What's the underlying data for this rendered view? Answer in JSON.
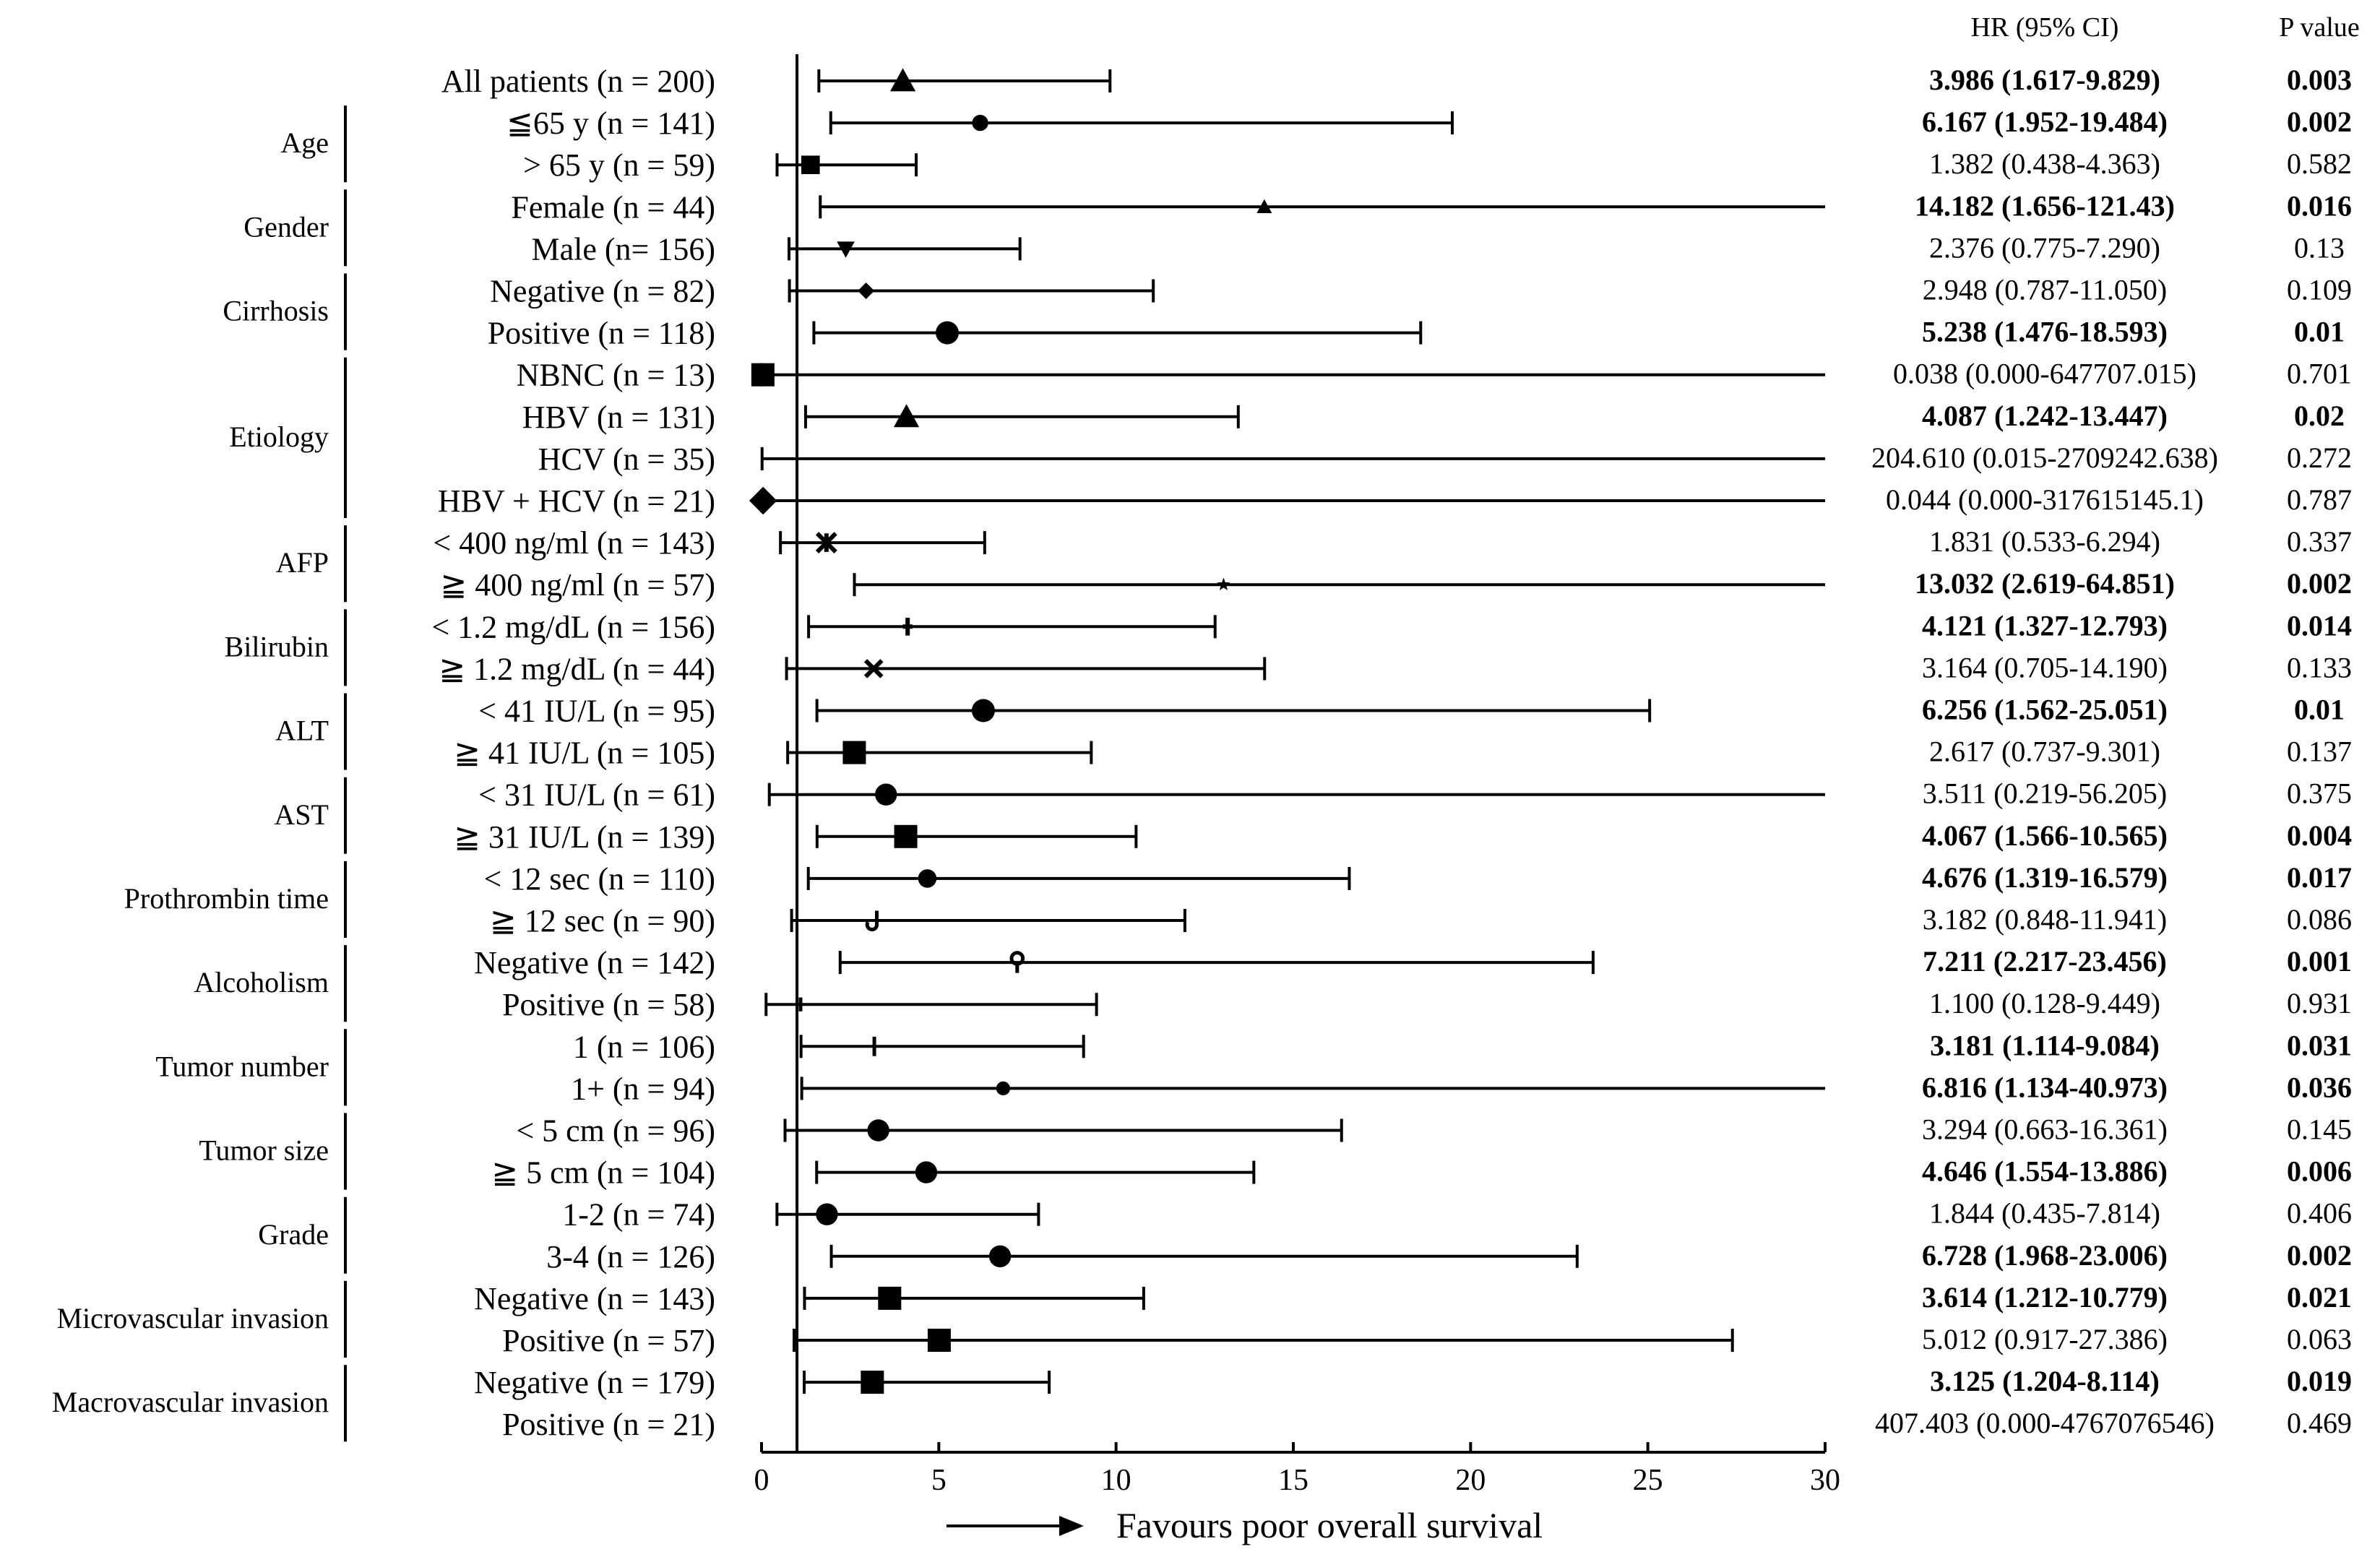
{
  "chart_data": {
    "type": "forest",
    "x_ticks": [
      0,
      5,
      10,
      15,
      20,
      25,
      30
    ],
    "xlim": [
      0,
      30
    ],
    "reference_line": 1,
    "xlabel": "Favours poor overall survival",
    "column_headers": {
      "hr": "HR (95% CI)",
      "p": "P value"
    },
    "groups": [
      {
        "label": "Age",
        "rows": [
          1,
          2
        ]
      },
      {
        "label": "Gender",
        "rows": [
          3,
          4
        ]
      },
      {
        "label": "Cirrhosis",
        "rows": [
          5,
          6
        ]
      },
      {
        "label": "Etiology",
        "rows": [
          7,
          10
        ]
      },
      {
        "label": "AFP",
        "rows": [
          11,
          12
        ]
      },
      {
        "label": "Bilirubin",
        "rows": [
          13,
          14
        ]
      },
      {
        "label": "ALT",
        "rows": [
          15,
          16
        ]
      },
      {
        "label": "AST",
        "rows": [
          17,
          18
        ]
      },
      {
        "label": "Prothrombin time",
        "rows": [
          19,
          20
        ]
      },
      {
        "label": "Alcoholism",
        "rows": [
          21,
          22
        ]
      },
      {
        "label": "Tumor number",
        "rows": [
          23,
          24
        ]
      },
      {
        "label": "Tumor size",
        "rows": [
          25,
          26
        ]
      },
      {
        "label": "Grade",
        "rows": [
          27,
          28
        ]
      },
      {
        "label": "Microvascular invasion",
        "rows": [
          29,
          30
        ]
      },
      {
        "label": "Macrovascular invasion",
        "rows": [
          31,
          32
        ]
      }
    ],
    "rows": [
      {
        "label": "All patients (n = 200)",
        "hr": 3.986,
        "lo": 1.617,
        "hi": 9.829,
        "hr_text": "3.986 (1.617-9.829)",
        "p": "0.003",
        "sig": true,
        "marker": "triangle",
        "msize": 1.0
      },
      {
        "label": "≦65 y (n = 141)",
        "hr": 6.167,
        "lo": 1.952,
        "hi": 19.484,
        "hr_text": "6.167 (1.952-19.484)",
        "p": "0.002",
        "sig": true,
        "marker": "circle",
        "msize": 0.7
      },
      {
        "label": "> 65 y (n = 59)",
        "hr": 1.382,
        "lo": 0.438,
        "hi": 4.363,
        "hr_text": "1.382 (0.438-4.363)",
        "p": "0.582",
        "sig": false,
        "marker": "square",
        "msize": 0.8
      },
      {
        "label": "Female (n = 44)",
        "hr": 14.182,
        "lo": 1.656,
        "hi": 121.43,
        "hr_text": "14.182 (1.656-121.43)",
        "p": "0.016",
        "sig": true,
        "marker": "triangle",
        "msize": 0.6
      },
      {
        "label": "Male (n= 156)",
        "hr": 2.376,
        "lo": 0.775,
        "hi": 7.29,
        "hr_text": "2.376 (0.775-7.290)",
        "p": "0.13",
        "sig": false,
        "marker": "triangle-down",
        "msize": 0.7
      },
      {
        "label": "Negative (n = 82)",
        "hr": 2.948,
        "lo": 0.787,
        "hi": 11.05,
        "hr_text": "2.948 (0.787-11.050)",
        "p": "0.109",
        "sig": false,
        "marker": "diamond",
        "msize": 0.6
      },
      {
        "label": "Positive (n = 118)",
        "hr": 5.238,
        "lo": 1.476,
        "hi": 18.593,
        "hr_text": "5.238 (1.476-18.593)",
        "p": "0.01",
        "sig": true,
        "marker": "circle",
        "msize": 1.0
      },
      {
        "label": "NBNC (n = 13)",
        "hr": 0.038,
        "lo": 0.0,
        "hi": 647707.015,
        "hr_text": "0.038 (0.000-647707.015)",
        "p": "0.701",
        "sig": false,
        "marker": "square",
        "msize": 1.0
      },
      {
        "label": "HBV (n = 131)",
        "hr": 4.087,
        "lo": 1.242,
        "hi": 13.447,
        "hr_text": "4.087 (1.242-13.447)",
        "p": "0.02",
        "sig": true,
        "marker": "triangle",
        "msize": 1.0
      },
      {
        "label": "HCV (n = 35)",
        "hr": 204.61,
        "lo": 0.015,
        "hi": 2709242.638,
        "hr_text": "204.610 (0.015-2709242.638)",
        "p": "0.272",
        "sig": false,
        "marker": "none",
        "msize": 0
      },
      {
        "label": "HBV + HCV (n = 21)",
        "hr": 0.044,
        "lo": 0.0,
        "hi": 317615145.1,
        "hr_text": "0.044 (0.000-317615145.1)",
        "p": "0.787",
        "sig": false,
        "marker": "diamond",
        "msize": 1.0
      },
      {
        "label": "< 400 ng/ml (n = 143)",
        "hr": 1.831,
        "lo": 0.533,
        "hi": 6.294,
        "hr_text": "1.831 (0.533-6.294)",
        "p": "0.337",
        "sig": false,
        "marker": "cross",
        "msize": 0.8
      },
      {
        "label": "≧ 400 ng/ml (n = 57)",
        "hr": 13.032,
        "lo": 2.619,
        "hi": 64.851,
        "hr_text": "13.032 (2.619-64.851)",
        "p": "0.002",
        "sig": true,
        "marker": "star",
        "msize": 0.5
      },
      {
        "label": "< 1.2 mg/dL (n = 156)",
        "hr": 4.121,
        "lo": 1.327,
        "hi": 12.793,
        "hr_text": "4.121 (1.327-12.793)",
        "p": "0.014",
        "sig": true,
        "marker": "plus",
        "msize": 0.7
      },
      {
        "label": "≧ 1.2 mg/dL (n = 44)",
        "hr": 3.164,
        "lo": 0.705,
        "hi": 14.19,
        "hr_text": "3.164 (0.705-14.190)",
        "p": "0.133",
        "sig": false,
        "marker": "x",
        "msize": 0.7
      },
      {
        "label": "< 41 IU/L (n = 95)",
        "hr": 6.256,
        "lo": 1.562,
        "hi": 25.051,
        "hr_text": "6.256 (1.562-25.051)",
        "p": "0.01",
        "sig": true,
        "marker": "circle",
        "msize": 1.0
      },
      {
        "label": "≧ 41 IU/L (n = 105)",
        "hr": 2.617,
        "lo": 0.737,
        "hi": 9.301,
        "hr_text": "2.617 (0.737-9.301)",
        "p": "0.137",
        "sig": false,
        "marker": "square",
        "msize": 1.0
      },
      {
        "label": "< 31 IU/L (n = 61)",
        "hr": 3.511,
        "lo": 0.219,
        "hi": 56.205,
        "hr_text": "3.511 (0.219-56.205)",
        "p": "0.375",
        "sig": false,
        "marker": "circle",
        "msize": 0.95
      },
      {
        "label": "≧ 31 IU/L (n = 139)",
        "hr": 4.067,
        "lo": 1.566,
        "hi": 10.565,
        "hr_text": "4.067 (1.566-10.565)",
        "p": "0.004",
        "sig": true,
        "marker": "square",
        "msize": 1.0
      },
      {
        "label": "< 12 sec (n = 110)",
        "hr": 4.676,
        "lo": 1.319,
        "hi": 16.579,
        "hr_text": "4.676 (1.319-16.579)",
        "p": "0.017",
        "sig": true,
        "marker": "circle",
        "msize": 0.8
      },
      {
        "label": "≧ 12 sec (n = 90)",
        "hr": 3.182,
        "lo": 0.848,
        "hi": 11.941,
        "hr_text": "3.182 (0.848-11.941)",
        "p": "0.086",
        "sig": false,
        "marker": "hook",
        "msize": 0.7
      },
      {
        "label": "Negative (n = 142)",
        "hr": 7.211,
        "lo": 2.217,
        "hi": 23.456,
        "hr_text": "7.211 (2.217-23.456)",
        "p": "0.001",
        "sig": true,
        "marker": "female",
        "msize": 0.7
      },
      {
        "label": "Positive (n = 58)",
        "hr": 1.1,
        "lo": 0.128,
        "hi": 9.449,
        "hr_text": "1.100 (0.128-9.449)",
        "p": "0.931",
        "sig": false,
        "marker": "tick",
        "msize": 0.5
      },
      {
        "label": "1 (n = 106)",
        "hr": 3.181,
        "lo": 1.114,
        "hi": 9.084,
        "hr_text": "3.181 (1.114-9.084)",
        "p": "0.031",
        "sig": true,
        "marker": "tick",
        "msize": 0.7
      },
      {
        "label": "1+ (n = 94)",
        "hr": 6.816,
        "lo": 1.134,
        "hi": 40.973,
        "hr_text": "6.816 (1.134-40.973)",
        "p": "0.036",
        "sig": true,
        "marker": "circle",
        "msize": 0.6
      },
      {
        "label": "< 5 cm (n = 96)",
        "hr": 3.294,
        "lo": 0.663,
        "hi": 16.361,
        "hr_text": "3.294 (0.663-16.361)",
        "p": "0.145",
        "sig": false,
        "marker": "circle",
        "msize": 0.95
      },
      {
        "label": "≧ 5 cm (n = 104)",
        "hr": 4.646,
        "lo": 1.554,
        "hi": 13.886,
        "hr_text": "4.646 (1.554-13.886)",
        "p": "0.006",
        "sig": true,
        "marker": "circle",
        "msize": 0.95
      },
      {
        "label": "1-2 (n = 74)",
        "hr": 1.844,
        "lo": 0.435,
        "hi": 7.814,
        "hr_text": "1.844 (0.435-7.814)",
        "p": "0.406",
        "sig": false,
        "marker": "circle",
        "msize": 0.95
      },
      {
        "label": "3-4 (n = 126)",
        "hr": 6.728,
        "lo": 1.968,
        "hi": 23.006,
        "hr_text": "6.728 (1.968-23.006)",
        "p": "0.002",
        "sig": true,
        "marker": "circle",
        "msize": 0.95
      },
      {
        "label": "Negative (n = 143)",
        "hr": 3.614,
        "lo": 1.212,
        "hi": 10.779,
        "hr_text": "3.614 (1.212-10.779)",
        "p": "0.021",
        "sig": true,
        "marker": "square",
        "msize": 1.0
      },
      {
        "label": "Positive (n = 57)",
        "hr": 5.012,
        "lo": 0.917,
        "hi": 27.386,
        "hr_text": "5.012 (0.917-27.386)",
        "p": "0.063",
        "sig": false,
        "marker": "square",
        "msize": 1.0
      },
      {
        "label": "Negative (n = 179)",
        "hr": 3.125,
        "lo": 1.204,
        "hi": 8.114,
        "hr_text": "3.125 (1.204-8.114)",
        "p": "0.019",
        "sig": true,
        "marker": "square",
        "msize": 1.0
      },
      {
        "label": "Positive (n = 21)",
        "hr": 407.403,
        "lo": 0.0,
        "hi": 4767076546,
        "hr_text": "407.403 (0.000-4767076546)",
        "p": "0.469",
        "sig": false,
        "marker": "none",
        "msize": 0,
        "hide_bar": true
      }
    ]
  }
}
